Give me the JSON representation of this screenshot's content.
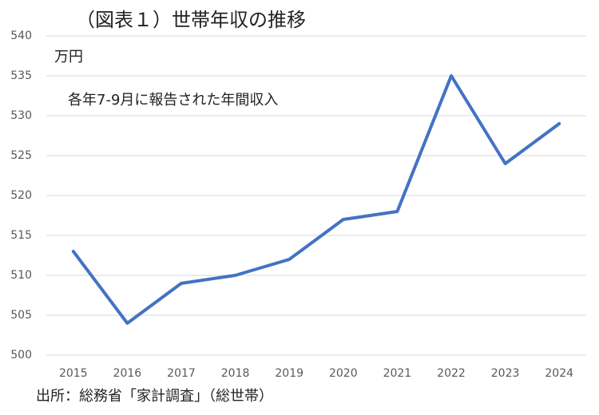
{
  "chart_data": {
    "type": "line",
    "title": "（図表１）世帯年収の推移",
    "ylabel": "万円",
    "annotation": "各年7-9月に報告された年間収入",
    "source": "出所：総務省「家計調査」（総世帯）",
    "categories": [
      "2015",
      "2016",
      "2017",
      "2018",
      "2019",
      "2020",
      "2021",
      "2022",
      "2023",
      "2024"
    ],
    "values": [
      513,
      504,
      509,
      510,
      512,
      517,
      518,
      535,
      524,
      529
    ],
    "color": "#4472c4",
    "ylim": [
      500,
      540
    ],
    "yticks": [
      500,
      505,
      510,
      515,
      520,
      525,
      530,
      535,
      540
    ],
    "grid": true
  }
}
